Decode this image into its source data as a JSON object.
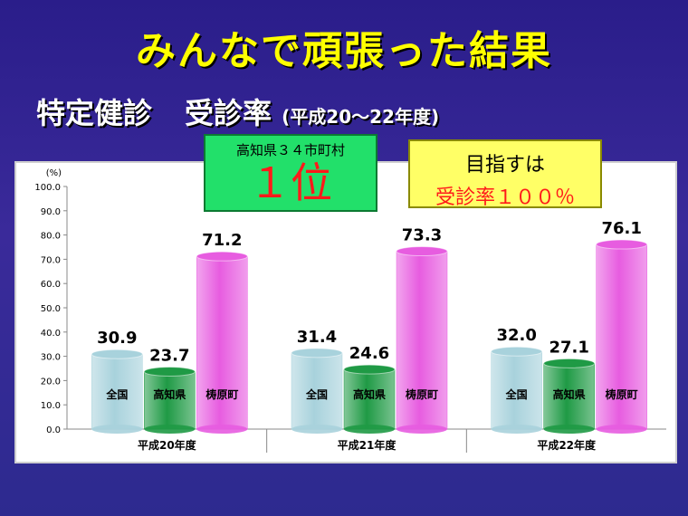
{
  "slide": {
    "title": "みんなで頑張った結果",
    "subtitle_main": "特定健診",
    "subtitle_rate": "受診率",
    "subtitle_period": "(平成20～22年度)"
  },
  "callouts": {
    "rank_label": "高知県３４市町村",
    "rank_value": "１位",
    "goal_line1": "目指すは",
    "goal_line2": "受診率１００％"
  },
  "chart_data": {
    "type": "bar",
    "ylabel": "(%)",
    "ylim": [
      0,
      100
    ],
    "yticks": [
      "0.0",
      "10.0",
      "20.0",
      "30.0",
      "40.0",
      "50.0",
      "60.0",
      "70.0",
      "80.0",
      "90.0",
      "100.0"
    ],
    "categories": [
      "平成20年度",
      "平成21年度",
      "平成22年度"
    ],
    "series": [
      {
        "name": "全国",
        "values": [
          30.9,
          31.4,
          32.0
        ],
        "value_labels": [
          "30.9",
          "31.4",
          "32.0"
        ],
        "color": "#a8d2dc"
      },
      {
        "name": "高知県",
        "values": [
          23.7,
          24.6,
          27.1
        ],
        "value_labels": [
          "23.7",
          "24.6",
          "27.1"
        ],
        "color": "#1f9a45"
      },
      {
        "name": "梼原町",
        "values": [
          71.2,
          73.3,
          76.1
        ],
        "value_labels": [
          "71.2",
          "73.3",
          "76.1"
        ],
        "color": "#e75ce0"
      }
    ],
    "grid": false
  }
}
